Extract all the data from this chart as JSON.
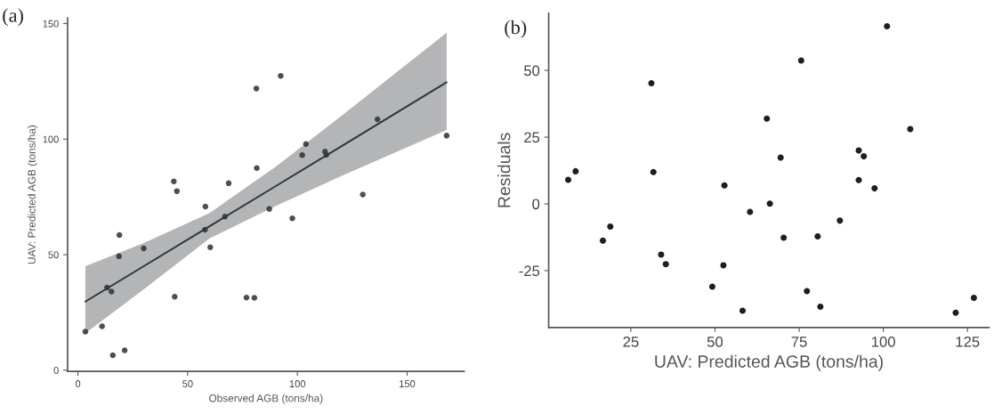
{
  "chart_data": [
    {
      "type": "scatter",
      "xlabel": "Observed AGB (tons/ha)",
      "ylabel": "UAV: Predicted AGB (tons/ha)",
      "annotations": [
        "(a)"
      ],
      "xlim": [
        -4.7,
        176
      ],
      "ylim": [
        -0.5,
        152.5
      ],
      "xticks": [
        0,
        50,
        100,
        150
      ],
      "yticks": [
        0,
        50,
        100,
        150
      ],
      "grid": false,
      "legend": false,
      "marker": "circle",
      "series": [
        {
          "color": "#3c3c3c",
          "x": [
            3.4,
            11,
            15.9,
            21.3,
            13.3,
            15.3,
            18.7,
            18.9,
            30,
            43.7,
            45.1,
            44.1,
            58.1,
            57.9,
            60.3,
            67,
            68.7,
            80.4,
            81.3,
            92.4,
            81.5,
            87.2,
            97.7,
            76.8,
            102.2,
            103.9,
            112.6,
            113.2,
            129.8,
            136.5,
            168
          ],
          "values": [
            16.7,
            19,
            6.5,
            8.6,
            35.8,
            34,
            49.3,
            58.5,
            52.7,
            81.7,
            77.5,
            31.8,
            70.8,
            60.8,
            53.2,
            66.5,
            80.9,
            31.3,
            121.9,
            127.4,
            87.5,
            69.8,
            65.7,
            31.4,
            93.1,
            97.9,
            94.6,
            93.2,
            76,
            108.6,
            101.5
          ]
        },
        {
          "type": "line",
          "color": "#2f3338",
          "marker": "none",
          "line_style": "solid",
          "x": [
            3.4,
            30,
            60,
            90,
            120,
            168
          ],
          "values": [
            29.7,
            45.0,
            62.3,
            79.6,
            96.9,
            124.6
          ],
          "lower": [
            16,
            35,
            57,
            71,
            84,
            104
          ],
          "upper": [
            45,
            55,
            68,
            88,
            110,
            146
          ]
        }
      ]
    },
    {
      "type": "scatter",
      "xlabel": "UAV: Predicted AGB (tons/ha)",
      "ylabel": "Residuals",
      "annotations": [
        "(b)"
      ],
      "xlim": [
        0.6,
        131.4
      ],
      "ylim": [
        -46.3,
        71.4
      ],
      "xticks": [
        25,
        50,
        75,
        100,
        125
      ],
      "yticks": [
        {
          "value": -25,
          "label": "-25"
        },
        0,
        25,
        50
      ],
      "grid": false,
      "legend": false,
      "marker": "circle",
      "series": [
        {
          "color": "#1e1e1e",
          "x": [
            6.4,
            8.6,
            16.7,
            18.9,
            31.1,
            31.7,
            34,
            35.4,
            49.2,
            52.8,
            52.5,
            58.2,
            60.4,
            65.4,
            66.3,
            69.5,
            70.4,
            75.6,
            77.3,
            80.5,
            81.3,
            87.1,
            92.7,
            94.2,
            92.7,
            97.4,
            101.1,
            108,
            121.5,
            126.9
          ],
          "values": [
            9.0,
            12.2,
            -13.8,
            -8.5,
            45.2,
            11.9,
            -19,
            -22.6,
            -31,
            6.9,
            -23,
            -40,
            -3,
            31.9,
            0.1,
            17.3,
            -12.7,
            53.7,
            -32.7,
            -12.2,
            -38.5,
            -6.3,
            20,
            17.8,
            8.9,
            5.8,
            66.5,
            28,
            -40.8,
            -35.2
          ]
        }
      ]
    }
  ]
}
